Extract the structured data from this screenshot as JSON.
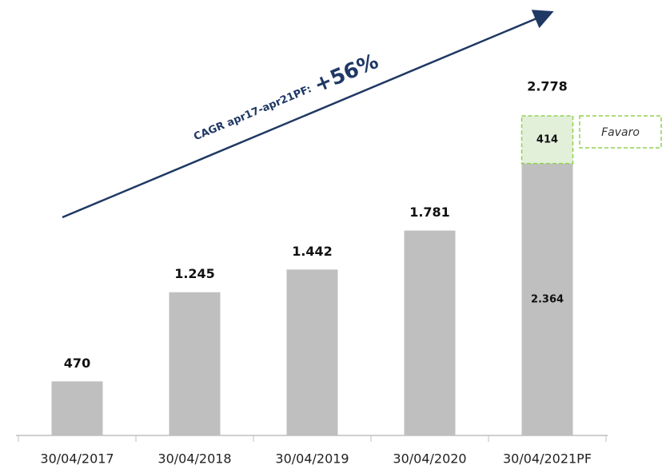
{
  "chart_data": {
    "type": "stacked_bar",
    "categories": [
      "30/04/2017",
      "30/04/2018",
      "30/04/2019",
      "30/04/2020",
      "30/04/2021PF"
    ],
    "series": [
      {
        "color": "#bfbfbf",
        "values": [
          470,
          1245,
          1442,
          1781,
          2364
        ],
        "value_labels": [
          "470",
          "1.245",
          "1.442",
          "1.781",
          "2.364"
        ]
      },
      {
        "name": "Favaro",
        "color": "#e2f0d9",
        "border_color": "#92d050",
        "values": [
          null,
          null,
          null,
          null,
          414
        ],
        "value_labels": [
          null,
          null,
          null,
          null,
          "414"
        ]
      }
    ],
    "total_label": "2.778",
    "annotation": {
      "text": "CAGR apr17-apr21PF:",
      "highlight": "+56%",
      "color": "#1f3864"
    }
  }
}
